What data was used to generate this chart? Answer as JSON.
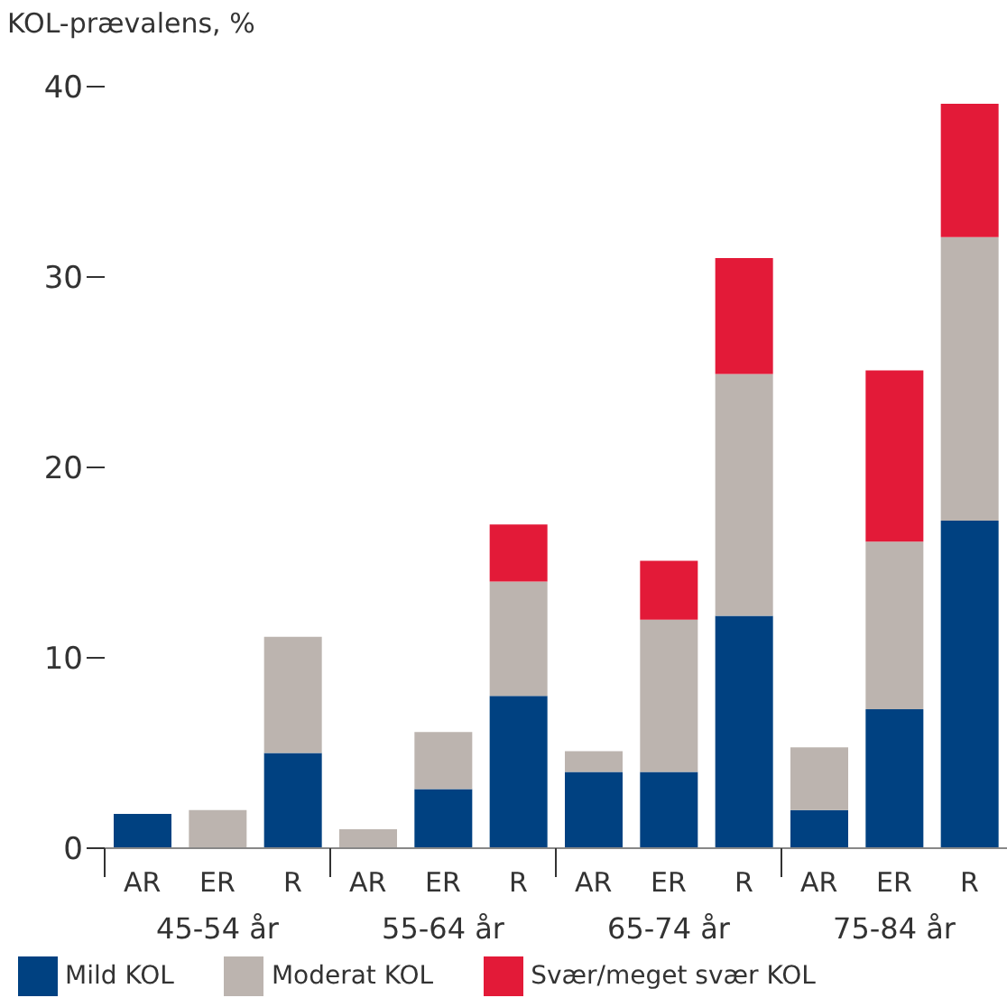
{
  "chart_data": {
    "type": "bar",
    "stacked": true,
    "ylabel": "KOL-prævalens, %",
    "categories": [
      "AR",
      "ER",
      "R",
      "AR",
      "ER",
      "R",
      "AR",
      "ER",
      "R",
      "AR",
      "ER",
      "R"
    ],
    "series": [
      {
        "name": "Mild KOL",
        "color": "#004181",
        "values": [
          1.8,
          0,
          5.0,
          0,
          3.1,
          8.0,
          4.0,
          4.0,
          12.2,
          2.0,
          7.3,
          17.2
        ]
      },
      {
        "name": "Moderat KOL",
        "color": "#bcb4af",
        "values": [
          0,
          2.0,
          6.1,
          1.0,
          3.0,
          6.0,
          1.1,
          8.0,
          12.7,
          3.3,
          8.8,
          14.9
        ]
      },
      {
        "name": "Svær/meget svær KOL",
        "color": "#e31a38",
        "values": [
          0,
          0,
          0,
          0,
          0,
          3.0,
          0,
          3.1,
          6.1,
          0,
          9.0,
          7.0
        ]
      }
    ],
    "annotations": [
      "45-54 år",
      "55-64 år",
      "65-74 år",
      "75-84 år"
    ],
    "ylim": [
      0,
      40
    ],
    "yticks": [
      0,
      10,
      20,
      30,
      40
    ],
    "grid": false,
    "legend": "bottom"
  }
}
